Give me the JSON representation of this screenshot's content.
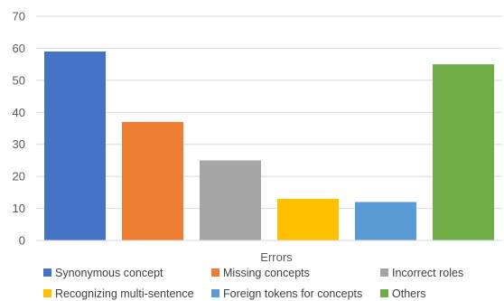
{
  "chart_data": {
    "type": "bar",
    "title": "",
    "xlabel": "Errors",
    "ylabel": "",
    "ylim": [
      0,
      70
    ],
    "yticks": [
      0,
      10,
      20,
      30,
      40,
      50,
      60,
      70
    ],
    "grid": true,
    "legend_position": "bottom",
    "series": [
      {
        "name": "Synonymous concept",
        "value": 59,
        "color": "#4472C4"
      },
      {
        "name": "Missing concepts",
        "value": 37,
        "color": "#ED7D31"
      },
      {
        "name": "Incorrect roles",
        "value": 25,
        "color": "#A5A5A5"
      },
      {
        "name": "Recognizing multi-sentence",
        "value": 13,
        "color": "#FFC000"
      },
      {
        "name": "Foreign tokens for concepts",
        "value": 12,
        "color": "#5B9BD5"
      },
      {
        "name": "Others",
        "value": 55,
        "color": "#70AD47"
      }
    ]
  }
}
